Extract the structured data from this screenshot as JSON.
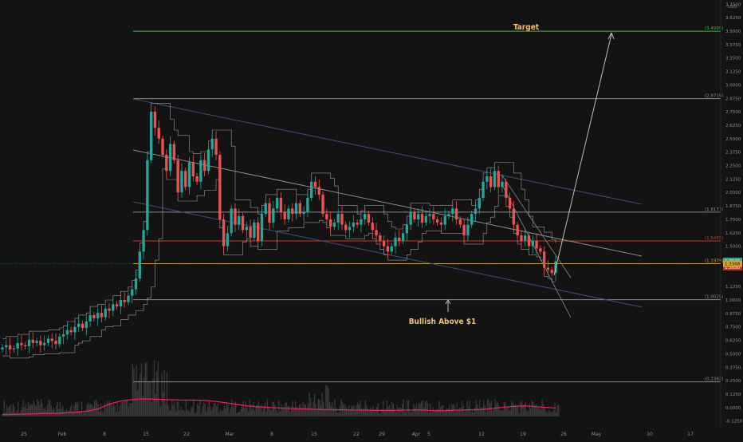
{
  "chart_data": {
    "type": "candlestick",
    "currency": "USD",
    "y_scale": "linear",
    "grid": false,
    "ylim": [
      -0.2,
      3.75
    ],
    "x_ticks": [
      "25",
      "Feb",
      "8",
      "15",
      "22",
      "Mar",
      "8",
      "15",
      "22",
      "29",
      "Apr",
      "5",
      "12",
      "19",
      "26",
      "May",
      "10",
      "17"
    ],
    "y_ticks": [
      {
        "v": 3.75,
        "label": "3.7500"
      },
      {
        "v": 3.625,
        "label": "3.6250"
      },
      {
        "v": 3.5,
        "label": "3.5000"
      },
      {
        "v": 3.375,
        "label": "3.3750"
      },
      {
        "v": 3.25,
        "label": "3.2500"
      },
      {
        "v": 3.125,
        "label": "3.1250"
      },
      {
        "v": 3.0,
        "label": "3.0000"
      },
      {
        "v": 2.875,
        "label": "2.8750"
      },
      {
        "v": 2.75,
        "label": "2.7500"
      },
      {
        "v": 2.625,
        "label": "2.6250"
      },
      {
        "v": 2.5,
        "label": "2.5000"
      },
      {
        "v": 2.375,
        "label": "2.3750"
      },
      {
        "v": 2.25,
        "label": "2.2500"
      },
      {
        "v": 2.125,
        "label": "2.1250"
      },
      {
        "v": 2.0,
        "label": "2.0000"
      },
      {
        "v": 1.875,
        "label": "1.8750"
      },
      {
        "v": 1.75,
        "label": "1.7500"
      },
      {
        "v": 1.625,
        "label": "1.6250"
      },
      {
        "v": 1.5,
        "label": "1.5000"
      },
      {
        "v": 1.375,
        "label": "1.3750"
      },
      {
        "v": 1.125,
        "label": "1.1250"
      },
      {
        "v": 1.0,
        "label": "1.0000"
      },
      {
        "v": 0.875,
        "label": "0.8750"
      },
      {
        "v": 0.75,
        "label": "0.7500"
      },
      {
        "v": 0.625,
        "label": "0.6250"
      },
      {
        "v": 0.5,
        "label": "0.5000"
      },
      {
        "v": 0.375,
        "label": "0.3750"
      },
      {
        "v": 0.25,
        "label": "0.2500"
      },
      {
        "v": 0.125,
        "label": "0.1250"
      },
      {
        "v": 0.0,
        "label": "0.0000"
      },
      {
        "v": -0.125,
        "label": "-0.1250"
      }
    ],
    "price_levels": [
      {
        "value": 3.4995,
        "label": "(3.4995)",
        "color": "#2fbf3f"
      },
      {
        "value": 2.8718,
        "label": "(2.8718)",
        "color": "#8a8a8a"
      },
      {
        "value": 1.8173,
        "label": "(1.8173)",
        "color": "#8a8a8a"
      },
      {
        "value": 1.5485,
        "label": "(1.5485)",
        "color": "#c0392b"
      },
      {
        "value": 1.3379,
        "label": "(1.3379)",
        "color": "#e0a020"
      },
      {
        "value": 1.0025,
        "label": "(1.0025)",
        "color": "#8a8a8a"
      },
      {
        "value": 0.2383,
        "label": "(0.2383)",
        "color": "#8a8a8a"
      }
    ],
    "last_price": {
      "value": 1.3368,
      "label": "1.3368"
    },
    "price_tags": [
      {
        "value": 1.3645,
        "label": "1.3645",
        "color": "#26a69a"
      },
      {
        "value": 1.305,
        "label": "1.3050",
        "color": "#c0392b"
      }
    ],
    "annotations": [
      {
        "text": "Target"
      },
      {
        "text": "Bullish Above $1"
      }
    ],
    "closes": [
      0.56,
      0.58,
      0.54,
      0.55,
      0.6,
      0.58,
      0.57,
      0.63,
      0.6,
      0.62,
      0.58,
      0.6,
      0.64,
      0.62,
      0.59,
      0.66,
      0.68,
      0.72,
      0.7,
      0.75,
      0.78,
      0.74,
      0.8,
      0.86,
      0.83,
      0.88,
      0.84,
      0.92,
      0.9,
      0.96,
      0.94,
      1.0,
      0.98,
      1.04,
      1.1,
      1.2,
      1.45,
      1.65,
      2.3,
      2.75,
      2.6,
      2.5,
      2.35,
      2.2,
      2.45,
      2.3,
      2.0,
      2.2,
      2.05,
      2.28,
      2.15,
      2.1,
      2.3,
      2.2,
      2.4,
      2.5,
      2.35,
      1.75,
      1.5,
      1.62,
      1.85,
      1.7,
      1.78,
      1.65,
      1.68,
      1.58,
      1.72,
      1.55,
      1.8,
      1.9,
      1.72,
      1.85,
      1.95,
      1.82,
      1.75,
      1.85,
      1.8,
      1.9,
      1.8,
      1.82,
      1.95,
      2.1,
      2.05,
      1.98,
      1.8,
      1.75,
      1.68,
      1.72,
      1.8,
      1.7,
      1.65,
      1.68,
      1.72,
      1.7,
      1.75,
      1.8,
      1.72,
      1.65,
      1.6,
      1.55,
      1.5,
      1.45,
      1.5,
      1.58,
      1.55,
      1.62,
      1.7,
      1.82,
      1.75,
      1.8,
      1.72,
      1.78,
      1.8,
      1.75,
      1.72,
      1.7,
      1.78,
      1.8,
      1.85,
      1.75,
      1.7,
      1.6,
      1.7,
      1.8,
      1.85,
      1.95,
      2.1,
      2.15,
      2.05,
      2.2,
      2.05,
      2.1,
      1.95,
      1.85,
      1.7,
      1.6,
      1.55,
      1.6,
      1.5,
      1.55,
      1.48,
      1.45,
      1.3,
      1.28,
      1.25,
      1.36
    ],
    "volume_ma": [
      0.006,
      0.007,
      0.008,
      0.009,
      0.01,
      0.01,
      0.012,
      0.014,
      0.018,
      0.025,
      0.04,
      0.05,
      0.055,
      0.058,
      0.057,
      0.056,
      0.055,
      0.054,
      0.054,
      0.053,
      0.05,
      0.045,
      0.04,
      0.035,
      0.032,
      0.03,
      0.028,
      0.026,
      0.025,
      0.024,
      0.023,
      0.022,
      0.022,
      0.021,
      0.021,
      0.02,
      0.02,
      0.02,
      0.021,
      0.022,
      0.02,
      0.019,
      0.02,
      0.021,
      0.022,
      0.023,
      0.026,
      0.03,
      0.033,
      0.035,
      0.033,
      0.03,
      0.028
    ]
  }
}
